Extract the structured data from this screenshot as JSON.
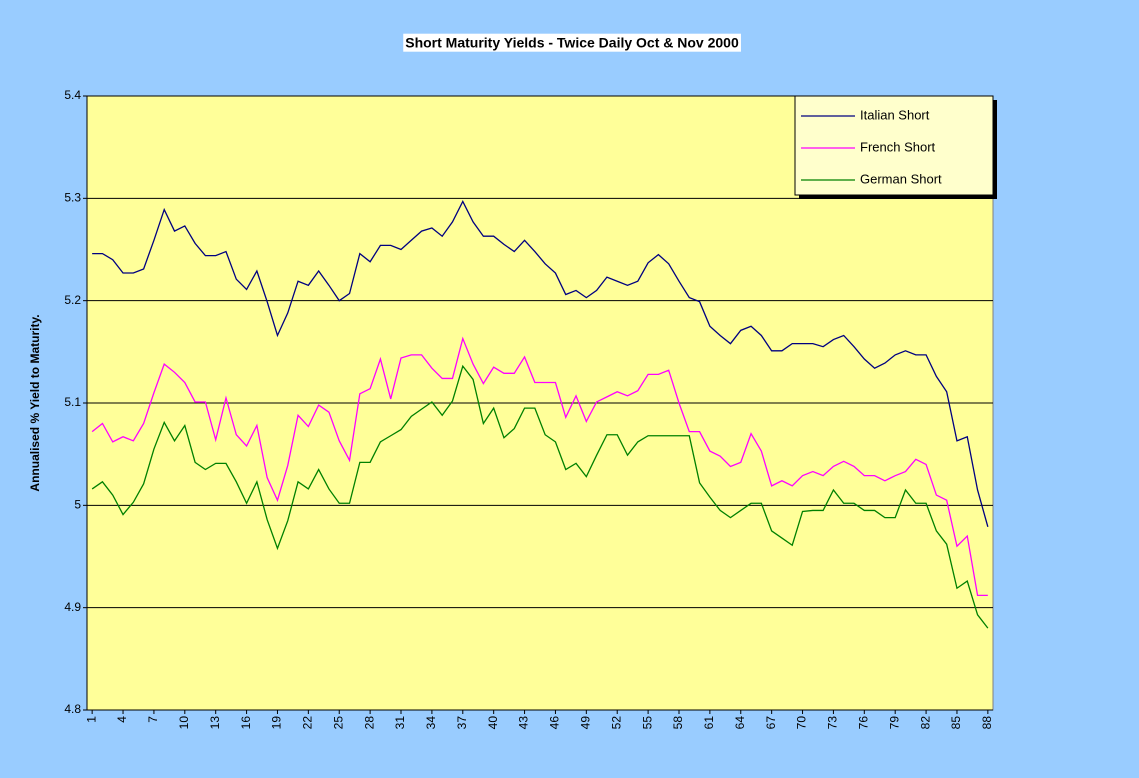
{
  "chart_data": {
    "type": "line",
    "title": "Short Maturity Yields - Twice Daily Oct & Nov 2000",
    "y_label": "Annualised % Yield to Maturity.",
    "x": [
      1,
      2,
      3,
      4,
      5,
      6,
      7,
      8,
      9,
      10,
      11,
      12,
      13,
      14,
      15,
      16,
      17,
      18,
      19,
      20,
      21,
      22,
      23,
      24,
      25,
      26,
      27,
      28,
      29,
      30,
      31,
      32,
      33,
      34,
      35,
      36,
      37,
      38,
      39,
      40,
      41,
      42,
      43,
      44,
      45,
      46,
      47,
      48,
      49,
      50,
      51,
      52,
      53,
      54,
      55,
      56,
      57,
      58,
      59,
      60,
      61,
      62,
      63,
      64,
      65,
      66,
      67,
      68,
      69,
      70,
      71,
      72,
      73,
      74,
      75,
      76,
      77,
      78,
      79,
      80,
      81,
      82,
      83,
      84,
      85,
      86,
      87,
      88
    ],
    "xlim": [
      0.5,
      88.5
    ],
    "xticks": [
      1,
      4,
      7,
      10,
      13,
      16,
      19,
      22,
      25,
      28,
      31,
      34,
      37,
      40,
      43,
      46,
      49,
      52,
      55,
      58,
      61,
      64,
      67,
      70,
      73,
      76,
      79,
      82,
      85,
      88
    ],
    "ylim": [
      4.8,
      5.4
    ],
    "yticks": [
      4.8,
      4.9,
      5,
      5.1,
      5.2,
      5.3,
      5.4
    ],
    "grid": true,
    "legend": "top-right",
    "series": [
      {
        "name": "Italian Short",
        "color": "#000080",
        "values": [
          5.246,
          5.246,
          5.24,
          5.227,
          5.227,
          5.231,
          5.259,
          5.289,
          5.268,
          5.273,
          5.256,
          5.244,
          5.244,
          5.248,
          5.221,
          5.211,
          5.229,
          5.199,
          5.166,
          5.188,
          5.219,
          5.215,
          5.229,
          5.215,
          5.2,
          5.207,
          5.246,
          5.238,
          5.254,
          5.254,
          5.25,
          5.259,
          5.268,
          5.271,
          5.263,
          5.277,
          5.297,
          5.277,
          5.263,
          5.263,
          5.255,
          5.248,
          5.259,
          5.248,
          5.236,
          5.227,
          5.206,
          5.21,
          5.203,
          5.21,
          5.223,
          5.219,
          5.215,
          5.219,
          5.237,
          5.245,
          5.236,
          5.219,
          5.203,
          5.199,
          5.175,
          5.166,
          5.158,
          5.171,
          5.175,
          5.166,
          5.151,
          5.151,
          5.158,
          5.158,
          5.158,
          5.155,
          5.162,
          5.166,
          5.155,
          5.143,
          5.134,
          5.139,
          5.147,
          5.151,
          5.147,
          5.147,
          5.126,
          5.111,
          5.063,
          5.067,
          5.015,
          4.979
        ]
      },
      {
        "name": "French Short",
        "color": "#ff00ff",
        "values": [
          5.072,
          5.08,
          5.062,
          5.067,
          5.063,
          5.08,
          5.11,
          5.138,
          5.13,
          5.12,
          5.101,
          5.101,
          5.064,
          5.105,
          5.069,
          5.058,
          5.078,
          5.027,
          5.005,
          5.039,
          5.088,
          5.077,
          5.098,
          5.091,
          5.063,
          5.044,
          5.109,
          5.114,
          5.143,
          5.104,
          5.144,
          5.147,
          5.147,
          5.134,
          5.124,
          5.124,
          5.163,
          5.138,
          5.119,
          5.135,
          5.129,
          5.129,
          5.145,
          5.12,
          5.12,
          5.12,
          5.086,
          5.107,
          5.082,
          5.101,
          5.106,
          5.111,
          5.107,
          5.112,
          5.128,
          5.128,
          5.132,
          5.1,
          5.072,
          5.072,
          5.053,
          5.048,
          5.038,
          5.042,
          5.07,
          5.053,
          5.019,
          5.024,
          5.019,
          5.029,
          5.033,
          5.029,
          5.038,
          5.043,
          5.038,
          5.029,
          5.029,
          5.024,
          5.029,
          5.033,
          5.045,
          5.04,
          5.01,
          5.005,
          4.96,
          4.97,
          4.912,
          4.912
        ]
      },
      {
        "name": "German Short",
        "color": "#008000",
        "values": [
          5.016,
          5.023,
          5.01,
          4.991,
          5.003,
          5.021,
          5.055,
          5.081,
          5.063,
          5.078,
          5.042,
          5.035,
          5.041,
          5.041,
          5.023,
          5.002,
          5.023,
          4.986,
          4.958,
          4.985,
          5.023,
          5.016,
          5.035,
          5.016,
          5.002,
          5.002,
          5.042,
          5.042,
          5.062,
          5.068,
          5.074,
          5.087,
          5.094,
          5.101,
          5.088,
          5.102,
          5.136,
          5.123,
          5.08,
          5.095,
          5.066,
          5.075,
          5.095,
          5.095,
          5.069,
          5.062,
          5.035,
          5.041,
          5.028,
          5.049,
          5.069,
          5.069,
          5.049,
          5.062,
          5.068,
          5.068,
          5.068,
          5.068,
          5.068,
          5.022,
          5.008,
          4.995,
          4.988,
          4.995,
          5.002,
          5.002,
          4.975,
          4.968,
          4.961,
          4.994,
          4.995,
          4.995,
          5.015,
          5.002,
          5.002,
          4.995,
          4.995,
          4.988,
          4.988,
          5.015,
          5.002,
          5.002,
          4.975,
          4.962,
          4.919,
          4.926,
          4.893,
          4.88
        ]
      }
    ]
  }
}
